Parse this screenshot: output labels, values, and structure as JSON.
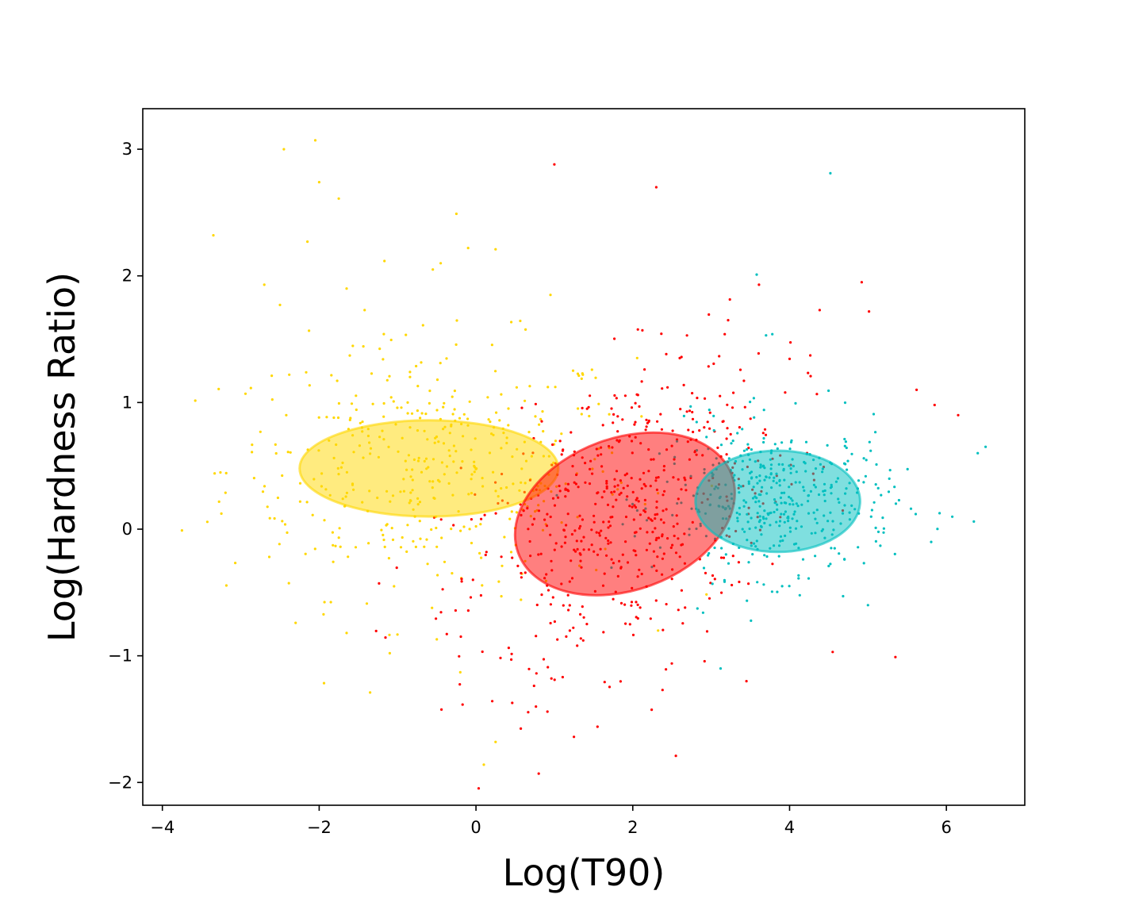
{
  "chart_data": {
    "type": "scatter",
    "title": "",
    "xlabel": "Log(T90)",
    "ylabel": "Log(Hardness Ratio)",
    "xlim": [
      -4.25,
      7.0
    ],
    "ylim": [
      -2.18,
      3.32
    ],
    "xticks": [
      -4,
      -2,
      0,
      2,
      4,
      6
    ],
    "yticks": [
      -2,
      -1,
      0,
      1,
      2,
      3
    ],
    "xtick_labels": [
      "−4",
      "−2",
      "0",
      "2",
      "4",
      "6"
    ],
    "ytick_labels": [
      "−2",
      "−1",
      "0",
      "1",
      "2",
      "3"
    ],
    "grid": false,
    "legend": "none",
    "clusters": [
      {
        "color": "#FFD700",
        "ellipse": {
          "cx": -0.6,
          "cy": 0.48,
          "width": 3.3,
          "height": 0.76,
          "angle_deg": 0
        },
        "spread": {
          "sx": 1.3,
          "sy": 0.5
        },
        "count": 430,
        "outliers": [
          [
            -2.05,
            3.07
          ],
          [
            -2.45,
            3.0
          ],
          [
            -2.0,
            2.74
          ],
          [
            -1.75,
            2.61
          ],
          [
            -3.35,
            2.32
          ],
          [
            -0.25,
            2.49
          ],
          [
            -2.15,
            2.27
          ],
          [
            -0.1,
            2.22
          ],
          [
            0.25,
            2.21
          ],
          [
            -0.45,
            2.1
          ],
          [
            -0.55,
            2.05
          ],
          [
            -2.7,
            1.93
          ],
          [
            -1.65,
            1.9
          ],
          [
            -2.5,
            1.77
          ],
          [
            0.95,
            1.85
          ],
          [
            -1.1,
            -0.98
          ],
          [
            -1.65,
            -0.82
          ],
          [
            -0.5,
            -0.87
          ],
          [
            -1.35,
            -1.29
          ],
          [
            -0.2,
            -1.13
          ],
          [
            0.25,
            -1.68
          ],
          [
            0.1,
            -1.86
          ],
          [
            -3.75,
            -0.01
          ],
          [
            -2.3,
            -0.74
          ]
        ]
      },
      {
        "color": "#FF0000",
        "ellipse": {
          "cx": 1.9,
          "cy": 0.12,
          "width": 2.9,
          "height": 1.2,
          "angle_deg": 20
        },
        "spread": {
          "sx": 1.1,
          "sy": 0.55
        },
        "count": 560,
        "outliers": [
          [
            1.0,
            2.88
          ],
          [
            2.3,
            2.7
          ],
          [
            4.92,
            1.95
          ],
          [
            0.8,
            -1.93
          ],
          [
            2.55,
            -1.79
          ],
          [
            1.25,
            -1.64
          ],
          [
            1.55,
            -1.56
          ],
          [
            2.38,
            -1.27
          ],
          [
            3.45,
            -1.2
          ],
          [
            5.35,
            -1.01
          ],
          [
            5.62,
            1.1
          ],
          [
            5.85,
            0.98
          ],
          [
            6.15,
            0.9
          ],
          [
            4.55,
            -0.97
          ],
          [
            0.45,
            -1.03
          ]
        ]
      },
      {
        "color": "#00BFBF",
        "ellipse": {
          "cx": 3.85,
          "cy": 0.22,
          "width": 2.1,
          "height": 0.8,
          "angle_deg": 0
        },
        "spread": {
          "sx": 0.75,
          "sy": 0.3
        },
        "count": 420,
        "outliers": [
          [
            4.52,
            2.81
          ],
          [
            3.58,
            2.01
          ],
          [
            3.7,
            1.53
          ],
          [
            3.78,
            1.54
          ],
          [
            6.5,
            0.65
          ],
          [
            6.4,
            0.6
          ],
          [
            6.35,
            0.06
          ],
          [
            3.12,
            -1.1
          ],
          [
            5.0,
            -0.6
          ]
        ]
      }
    ]
  }
}
